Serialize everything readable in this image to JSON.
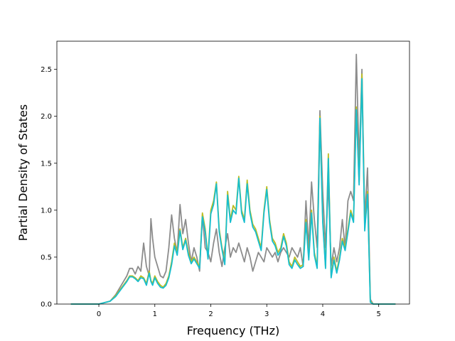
{
  "chart_data": {
    "type": "line",
    "title": "",
    "xlabel": "Frequency (THz)",
    "ylabel": "Partial Density of States",
    "xlim": [
      -0.75,
      5.55
    ],
    "ylim": [
      0,
      2.8
    ],
    "xticks": [
      0,
      1,
      2,
      3,
      4,
      5
    ],
    "yticks": [
      0.0,
      0.5,
      1.0,
      1.5,
      2.0,
      2.5
    ],
    "xtick_labels": [
      "0",
      "1",
      "2",
      "3",
      "4",
      "5"
    ],
    "ytick_labels": [
      "0.0",
      "0.5",
      "1.0",
      "1.5",
      "2.0",
      "2.5"
    ],
    "grid": false,
    "series": [
      {
        "color": "#8c8c8c",
        "x": [
          -0.5,
          0.0,
          0.2,
          0.3,
          0.4,
          0.5,
          0.55,
          0.6,
          0.65,
          0.7,
          0.75,
          0.8,
          0.85,
          0.9,
          0.93,
          0.96,
          1.0,
          1.05,
          1.1,
          1.15,
          1.2,
          1.25,
          1.3,
          1.35,
          1.4,
          1.45,
          1.5,
          1.55,
          1.6,
          1.65,
          1.7,
          1.75,
          1.8,
          1.85,
          1.9,
          1.95,
          2.0,
          2.05,
          2.1,
          2.15,
          2.2,
          2.25,
          2.3,
          2.35,
          2.4,
          2.45,
          2.5,
          2.55,
          2.6,
          2.65,
          2.7,
          2.75,
          2.8,
          2.85,
          2.9,
          2.95,
          3.0,
          3.05,
          3.1,
          3.15,
          3.2,
          3.25,
          3.3,
          3.35,
          3.4,
          3.45,
          3.5,
          3.55,
          3.6,
          3.65,
          3.7,
          3.75,
          3.8,
          3.85,
          3.9,
          3.95,
          4.0,
          4.05,
          4.1,
          4.15,
          4.2,
          4.25,
          4.3,
          4.35,
          4.4,
          4.45,
          4.5,
          4.55,
          4.6,
          4.65,
          4.7,
          4.75,
          4.8,
          4.85,
          4.9,
          5.0,
          5.3
        ],
        "y": [
          0,
          0,
          0.03,
          0.1,
          0.2,
          0.3,
          0.38,
          0.38,
          0.32,
          0.4,
          0.35,
          0.65,
          0.4,
          0.3,
          0.91,
          0.7,
          0.5,
          0.4,
          0.3,
          0.28,
          0.35,
          0.6,
          0.95,
          0.7,
          0.55,
          1.06,
          0.75,
          0.9,
          0.65,
          0.45,
          0.6,
          0.5,
          0.35,
          0.95,
          0.6,
          0.55,
          0.45,
          0.65,
          0.8,
          0.55,
          0.4,
          0.6,
          0.75,
          0.5,
          0.6,
          0.55,
          0.65,
          0.55,
          0.45,
          0.6,
          0.5,
          0.35,
          0.45,
          0.55,
          0.5,
          0.45,
          0.6,
          0.55,
          0.5,
          0.55,
          0.45,
          0.55,
          0.6,
          0.55,
          0.5,
          0.6,
          0.55,
          0.5,
          0.6,
          0.4,
          1.1,
          0.6,
          1.3,
          0.9,
          0.6,
          2.06,
          1.2,
          0.6,
          1.3,
          0.4,
          0.6,
          0.45,
          0.6,
          0.9,
          0.6,
          1.1,
          1.2,
          1.1,
          2.66,
          1.5,
          2.5,
          0.9,
          1.45,
          0.05,
          0,
          0,
          0
        ]
      },
      {
        "color": "#bcbd22",
        "x": [
          -0.5,
          0.0,
          0.2,
          0.3,
          0.4,
          0.5,
          0.55,
          0.6,
          0.65,
          0.7,
          0.75,
          0.8,
          0.85,
          0.9,
          0.93,
          0.96,
          1.0,
          1.05,
          1.1,
          1.15,
          1.2,
          1.25,
          1.3,
          1.35,
          1.4,
          1.45,
          1.5,
          1.55,
          1.6,
          1.65,
          1.7,
          1.75,
          1.8,
          1.85,
          1.9,
          1.95,
          2.0,
          2.05,
          2.1,
          2.15,
          2.2,
          2.25,
          2.3,
          2.35,
          2.4,
          2.45,
          2.5,
          2.55,
          2.6,
          2.65,
          2.7,
          2.75,
          2.8,
          2.85,
          2.9,
          2.95,
          3.0,
          3.05,
          3.1,
          3.15,
          3.2,
          3.25,
          3.3,
          3.35,
          3.4,
          3.45,
          3.5,
          3.55,
          3.6,
          3.65,
          3.7,
          3.75,
          3.8,
          3.85,
          3.9,
          3.95,
          4.0,
          4.05,
          4.1,
          4.15,
          4.2,
          4.25,
          4.3,
          4.35,
          4.4,
          4.45,
          4.5,
          4.55,
          4.6,
          4.65,
          4.7,
          4.75,
          4.8,
          4.85,
          4.9,
          5.0,
          5.3
        ],
        "y": [
          0,
          0,
          0.03,
          0.09,
          0.17,
          0.25,
          0.3,
          0.3,
          0.28,
          0.25,
          0.3,
          0.28,
          0.22,
          0.35,
          0.25,
          0.22,
          0.3,
          0.24,
          0.2,
          0.18,
          0.22,
          0.3,
          0.45,
          0.65,
          0.55,
          0.8,
          0.6,
          0.7,
          0.55,
          0.45,
          0.5,
          0.45,
          0.4,
          0.97,
          0.8,
          0.5,
          1.0,
          1.1,
          1.3,
          0.8,
          0.6,
          0.45,
          1.2,
          0.9,
          1.05,
          1.0,
          1.36,
          1.0,
          0.9,
          1.32,
          1.0,
          0.85,
          0.8,
          0.7,
          0.6,
          1.0,
          1.25,
          0.9,
          0.7,
          0.65,
          0.55,
          0.6,
          0.75,
          0.65,
          0.45,
          0.4,
          0.5,
          0.45,
          0.4,
          0.42,
          0.9,
          0.5,
          1.0,
          0.55,
          0.4,
          2.0,
          0.9,
          0.4,
          1.6,
          0.3,
          0.5,
          0.35,
          0.5,
          0.7,
          0.6,
          0.8,
          1.0,
          0.9,
          2.1,
          1.3,
          2.45,
          0.8,
          1.2,
          0.03,
          0,
          0,
          0
        ]
      },
      {
        "color": "#17becf",
        "x": [
          -0.5,
          0.0,
          0.2,
          0.3,
          0.4,
          0.5,
          0.55,
          0.6,
          0.65,
          0.7,
          0.75,
          0.8,
          0.85,
          0.9,
          0.93,
          0.96,
          1.0,
          1.05,
          1.1,
          1.15,
          1.2,
          1.25,
          1.3,
          1.35,
          1.4,
          1.45,
          1.5,
          1.55,
          1.6,
          1.65,
          1.7,
          1.75,
          1.8,
          1.85,
          1.9,
          1.95,
          2.0,
          2.05,
          2.1,
          2.15,
          2.2,
          2.25,
          2.3,
          2.35,
          2.4,
          2.45,
          2.5,
          2.55,
          2.6,
          2.65,
          2.7,
          2.75,
          2.8,
          2.85,
          2.9,
          2.95,
          3.0,
          3.05,
          3.1,
          3.15,
          3.2,
          3.25,
          3.3,
          3.35,
          3.4,
          3.45,
          3.5,
          3.55,
          3.6,
          3.65,
          3.7,
          3.75,
          3.8,
          3.85,
          3.9,
          3.95,
          4.0,
          4.05,
          4.1,
          4.15,
          4.2,
          4.25,
          4.3,
          4.35,
          4.4,
          4.45,
          4.5,
          4.55,
          4.6,
          4.65,
          4.7,
          4.75,
          4.8,
          4.85,
          4.9,
          5.0,
          5.3
        ],
        "y": [
          0,
          0,
          0.03,
          0.08,
          0.16,
          0.24,
          0.29,
          0.29,
          0.27,
          0.24,
          0.28,
          0.27,
          0.2,
          0.33,
          0.24,
          0.2,
          0.28,
          0.22,
          0.18,
          0.17,
          0.2,
          0.28,
          0.42,
          0.62,
          0.52,
          0.78,
          0.58,
          0.68,
          0.52,
          0.43,
          0.48,
          0.43,
          0.38,
          0.93,
          0.77,
          0.48,
          0.96,
          1.06,
          1.28,
          0.77,
          0.58,
          0.42,
          1.16,
          0.87,
          1.0,
          0.96,
          1.34,
          0.97,
          0.87,
          1.28,
          0.97,
          0.82,
          0.77,
          0.67,
          0.57,
          0.97,
          1.22,
          0.87,
          0.67,
          0.62,
          0.52,
          0.57,
          0.72,
          0.62,
          0.42,
          0.38,
          0.47,
          0.42,
          0.38,
          0.4,
          0.87,
          0.47,
          0.97,
          0.52,
          0.38,
          1.98,
          0.87,
          0.38,
          1.55,
          0.28,
          0.47,
          0.33,
          0.47,
          0.67,
          0.57,
          0.77,
          0.97,
          0.87,
          2.07,
          1.27,
          2.4,
          0.78,
          1.17,
          0.02,
          0,
          0,
          0
        ]
      }
    ]
  }
}
